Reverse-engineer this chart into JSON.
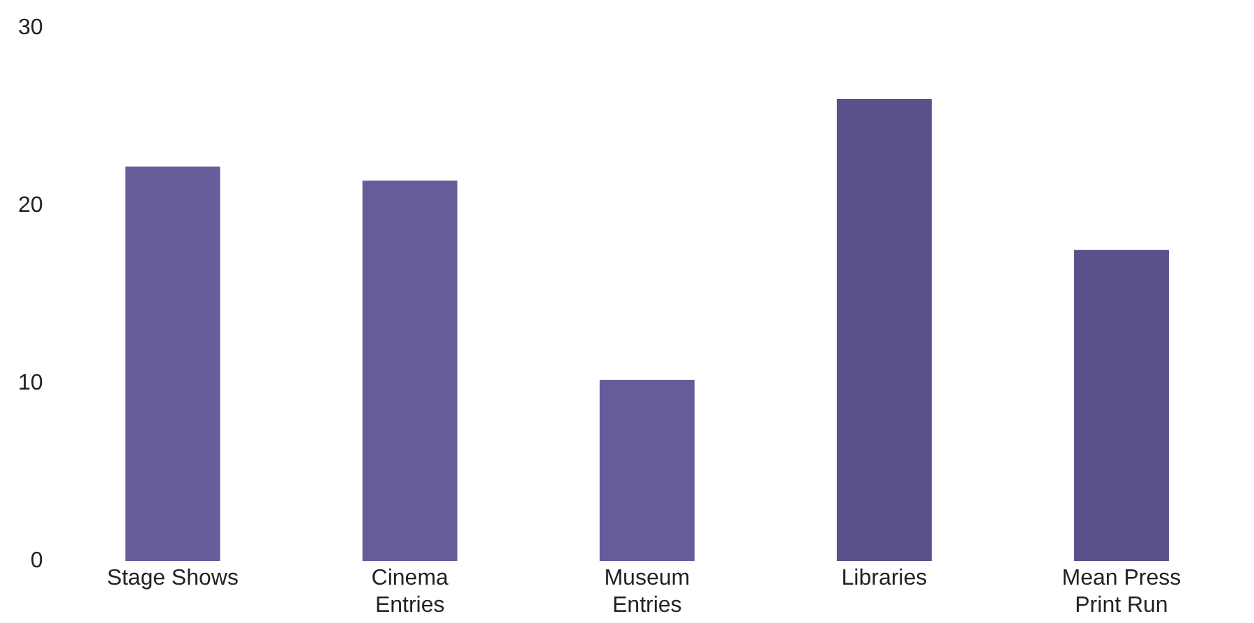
{
  "chart_data": {
    "type": "bar",
    "categories": [
      "Stage Shows",
      "Cinema Entries",
      "Museum Entries",
      "Libraries",
      "Mean Press Print Run"
    ],
    "values": [
      22.2,
      21.4,
      10.2,
      26.0,
      17.5
    ],
    "colors": [
      "#675c99",
      "#675c99",
      "#675c99",
      "#5b5089",
      "#5b5089"
    ],
    "ylim": [
      0,
      30
    ],
    "yticks": [
      0,
      10,
      20,
      30
    ],
    "grid": false,
    "legend": false
  }
}
